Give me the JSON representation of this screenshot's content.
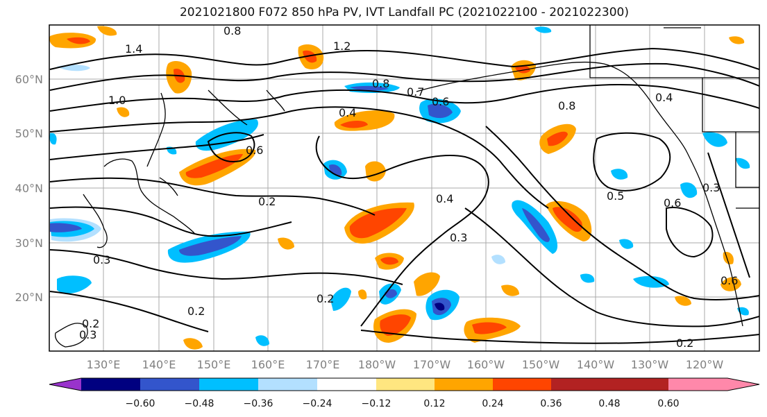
{
  "title": "2021021800 F072 850 hPa PV, IVT Landfall PC (2021022100 - 2021022300)",
  "lat_labels": [
    "60°N",
    "50°N",
    "40°N",
    "30°N",
    "20°N"
  ],
  "lon_labels": [
    "130°E",
    "140°E",
    "150°E",
    "160°E",
    "170°E",
    "180°W",
    "170°W",
    "160°W",
    "150°W",
    "140°W",
    "130°W",
    "120°W"
  ],
  "colorbar": {
    "ticks": [
      "−0.60",
      "−0.48",
      "−0.36",
      "−0.24",
      "−0.12",
      "0.12",
      "0.24",
      "0.36",
      "0.48",
      "0.60"
    ],
    "colors": [
      "#9933cc",
      "#000080",
      "#3355cc",
      "#00bfff",
      "#b3e0ff",
      "#ffffff",
      "#ffe680",
      "#ffa500",
      "#ff4500",
      "#b22222",
      "#ff88aa"
    ]
  },
  "contour_labels": [
    "0.8",
    "1.4",
    "1.2",
    "1.0",
    "0.8",
    "0.7",
    "0.6",
    "0.4",
    "0.6",
    "0.8",
    "0.4",
    "0.2",
    "0.4",
    "0.5",
    "0.3",
    "0.2",
    "0.3",
    "0.2",
    "0.6",
    "0.3",
    "0.6",
    "0.2",
    "0.3",
    "0.2"
  ]
}
